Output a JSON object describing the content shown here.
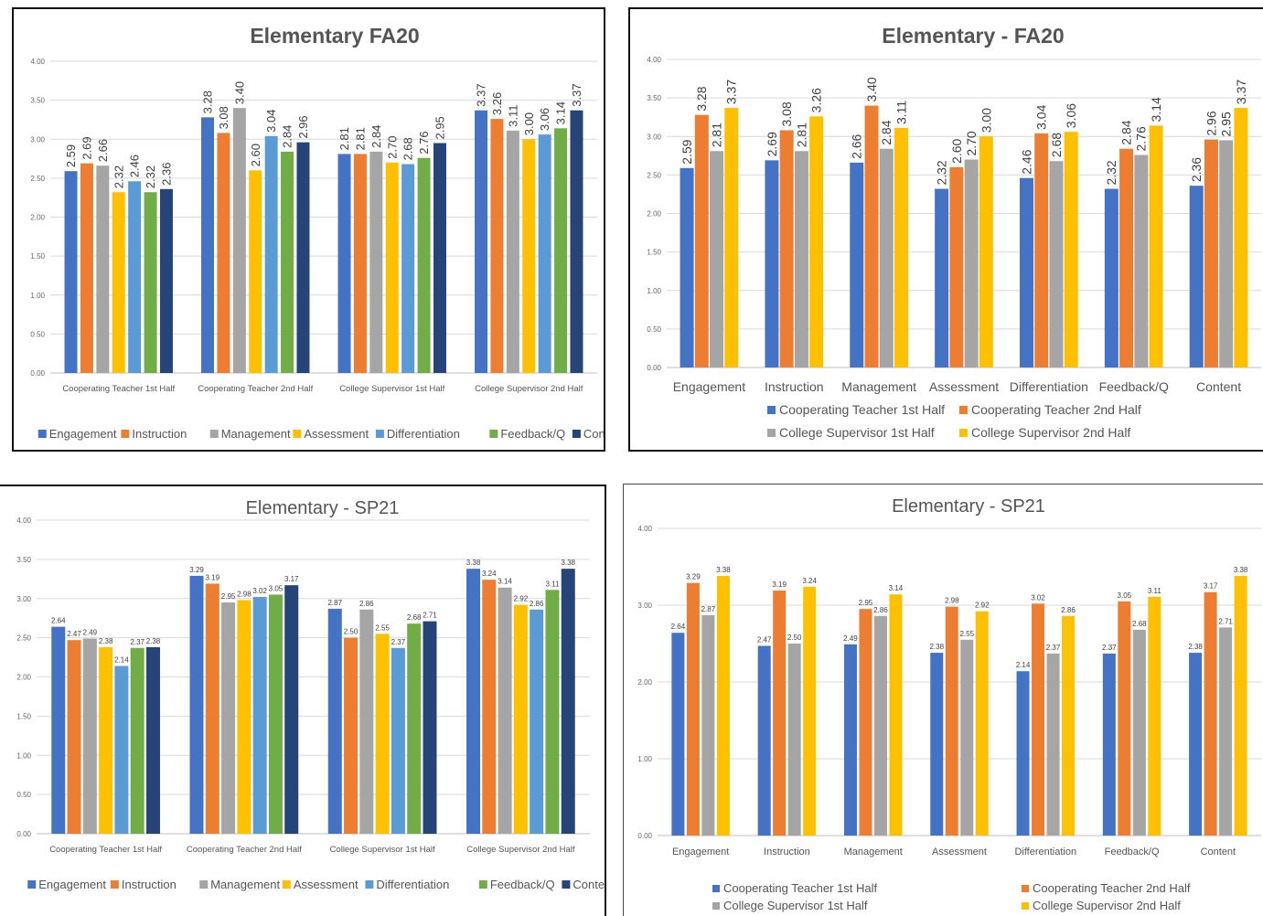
{
  "colors": {
    "engagement": "#4472C4",
    "instruction": "#ED7D31",
    "management": "#A5A5A5",
    "assessment": "#FFC000",
    "differentiation": "#5B9BD5",
    "feedback": "#70AD47",
    "content": "#264478"
  },
  "chart_data": [
    {
      "type": "bar",
      "title": "Elementary FA20",
      "categories": [
        "Cooperating Teacher 1st Half",
        "Cooperating Teacher 2nd Half",
        "College Supervisor 1st Half",
        "College Supervisor 2nd Half"
      ],
      "yticks": [
        "0.00",
        "0.50",
        "1.00",
        "1.50",
        "2.00",
        "2.50",
        "3.00",
        "3.50",
        "4.00"
      ],
      "ylim": [
        0,
        4
      ],
      "legend_position": "bottom",
      "data_label_orientation": "vertical",
      "series": [
        {
          "name": "Engagement",
          "color": "#4472C4",
          "values": [
            2.59,
            3.28,
            2.81,
            3.37
          ]
        },
        {
          "name": "Instruction",
          "color": "#ED7D31",
          "values": [
            2.69,
            3.08,
            2.81,
            3.26
          ]
        },
        {
          "name": "Management",
          "color": "#A5A5A5",
          "values": [
            2.66,
            3.4,
            2.84,
            3.11
          ]
        },
        {
          "name": "Assessment",
          "color": "#FFC000",
          "values": [
            2.32,
            2.6,
            2.7,
            3.0
          ]
        },
        {
          "name": "Differentiation",
          "color": "#5B9BD5",
          "values": [
            2.46,
            3.04,
            2.68,
            3.06
          ]
        },
        {
          "name": "Feedback/Q",
          "color": "#70AD47",
          "values": [
            2.32,
            2.84,
            2.76,
            3.14
          ]
        },
        {
          "name": "Content",
          "color": "#264478",
          "values": [
            2.36,
            2.96,
            2.95,
            3.37
          ]
        }
      ],
      "value_labels": [
        [
          "2.59",
          "3.28",
          "2.81",
          "3.37"
        ],
        [
          "2.69",
          "3.08",
          "2.81",
          "3.26"
        ],
        [
          "2.66",
          "3.40",
          "2.84",
          "3.11"
        ],
        [
          "2.32",
          "2.60",
          "2.70",
          "3.00"
        ],
        [
          "2.46",
          "3.04",
          "2.68",
          "3.06"
        ],
        [
          "2.32",
          "2.84",
          "2.76",
          "3.14"
        ],
        [
          "2.36",
          "2.96",
          "2.95",
          "3.37"
        ]
      ]
    },
    {
      "type": "bar",
      "title": "Elementary - FA20",
      "categories": [
        "Engagement",
        "Instruction",
        "Management",
        "Assessment",
        "Differentiation",
        "Feedback/Q",
        "Content"
      ],
      "yticks": [
        "0.00",
        "0.50",
        "1.00",
        "1.50",
        "2.00",
        "2.50",
        "3.00",
        "3.50",
        "4.00"
      ],
      "ylim": [
        0,
        4
      ],
      "legend_position": "bottom",
      "data_label_orientation": "vertical",
      "series": [
        {
          "name": "Cooperating Teacher 1st Half",
          "color": "#4472C4",
          "values": [
            2.59,
            2.69,
            2.66,
            2.32,
            2.46,
            2.32,
            2.36
          ]
        },
        {
          "name": "Cooperating Teacher 2nd Half",
          "color": "#ED7D31",
          "values": [
            3.28,
            3.08,
            3.4,
            2.6,
            3.04,
            2.84,
            2.96
          ]
        },
        {
          "name": "College Supervisor 1st Half",
          "color": "#A5A5A5",
          "values": [
            2.81,
            2.81,
            2.84,
            2.7,
            2.68,
            2.76,
            2.95
          ]
        },
        {
          "name": "College Supervisor 2nd Half",
          "color": "#FFC000",
          "values": [
            3.37,
            3.26,
            3.11,
            3.0,
            3.06,
            3.14,
            3.37
          ]
        }
      ],
      "value_labels": [
        [
          "2.59",
          "2.69",
          "2.66",
          "2.32",
          "2.46",
          "2.32",
          "2.36"
        ],
        [
          "3.28",
          "3.08",
          "3.40",
          "2.60",
          "3.04",
          "2.84",
          "2.96"
        ],
        [
          "2.81",
          "2.81",
          "2.84",
          "2.70",
          "2.68",
          "2.76",
          "2.95"
        ],
        [
          "3.37",
          "3.26",
          "3.11",
          "3.00",
          "3.06",
          "3.14",
          "3.37"
        ]
      ]
    },
    {
      "type": "bar",
      "title": "Elementary - SP21",
      "categories": [
        "Cooperating Teacher 1st Half",
        "Cooperating Teacher 2nd Half",
        "College Supervisor 1st Half",
        "College Supervisor 2nd Half"
      ],
      "yticks": [
        "0.00",
        "0.50",
        "1.00",
        "1.50",
        "2.00",
        "2.50",
        "3.00",
        "3.50",
        "4.00"
      ],
      "ylim": [
        0,
        4
      ],
      "legend_position": "bottom",
      "data_label_orientation": "horizontal",
      "series": [
        {
          "name": "Engagement",
          "color": "#4472C4",
          "values": [
            2.64,
            3.29,
            2.87,
            3.38
          ]
        },
        {
          "name": "Instruction",
          "color": "#ED7D31",
          "values": [
            2.47,
            3.19,
            2.5,
            3.24
          ]
        },
        {
          "name": "Management",
          "color": "#A5A5A5",
          "values": [
            2.49,
            2.95,
            2.86,
            3.14
          ]
        },
        {
          "name": "Assessment",
          "color": "#FFC000",
          "values": [
            2.38,
            2.98,
            2.55,
            2.92
          ]
        },
        {
          "name": "Differentiation",
          "color": "#5B9BD5",
          "values": [
            2.14,
            3.02,
            2.37,
            2.86
          ]
        },
        {
          "name": "Feedback/Q",
          "color": "#70AD47",
          "values": [
            2.37,
            3.05,
            2.68,
            3.11
          ]
        },
        {
          "name": "Content",
          "color": "#264478",
          "values": [
            2.38,
            3.17,
            2.71,
            3.38
          ]
        }
      ],
      "value_labels": [
        [
          "2.64",
          "3.29",
          "2.87",
          "3.38"
        ],
        [
          "2.47",
          "3.19",
          "2.50",
          "3.24"
        ],
        [
          "2.49",
          "2.95",
          "2.86",
          "3.14"
        ],
        [
          "2.38",
          "2.98",
          "2.55",
          "2.92"
        ],
        [
          "2.14",
          "3.02",
          "2.37",
          "2.86"
        ],
        [
          "2.37",
          "3.05",
          "2.68",
          "3.11"
        ],
        [
          "2.38",
          "3.17",
          "2.71",
          "3.38"
        ]
      ]
    },
    {
      "type": "bar",
      "title": "Elementary - SP21",
      "categories": [
        "Engagement",
        "Instruction",
        "Management",
        "Assessment",
        "Differentiation",
        "Feedback/Q",
        "Content"
      ],
      "yticks": [
        "0.00",
        "1.00",
        "2.00",
        "3.00",
        "4.00"
      ],
      "ylim": [
        0,
        4
      ],
      "legend_position": "bottom",
      "data_label_orientation": "horizontal",
      "series": [
        {
          "name": "Cooperating Teacher 1st Half",
          "color": "#4472C4",
          "values": [
            2.64,
            2.47,
            2.49,
            2.38,
            2.14,
            2.37,
            2.38
          ]
        },
        {
          "name": "Cooperating Teacher 2nd Half",
          "color": "#ED7D31",
          "values": [
            3.29,
            3.19,
            2.95,
            2.98,
            3.02,
            3.05,
            3.17
          ]
        },
        {
          "name": "College Supervisor 1st Half",
          "color": "#A5A5A5",
          "values": [
            2.87,
            2.5,
            2.86,
            2.55,
            2.37,
            2.68,
            2.71
          ]
        },
        {
          "name": "College Supervisor 2nd Half",
          "color": "#FFC000",
          "values": [
            3.38,
            3.24,
            3.14,
            2.92,
            2.86,
            3.11,
            3.38
          ]
        }
      ],
      "value_labels": [
        [
          "2.64",
          "2.47",
          "2.49",
          "2.38",
          "2.14",
          "2.37",
          "2.38"
        ],
        [
          "3.29",
          "3.19",
          "2.95",
          "2.98",
          "3.02",
          "3.05",
          "3.17"
        ],
        [
          "2.87",
          "2.50",
          "2.86",
          "2.55",
          "2.37",
          "2.68",
          "2.71"
        ],
        [
          "3.38",
          "3.24",
          "3.14",
          "2.92",
          "2.86",
          "3.11",
          "3.38"
        ]
      ]
    }
  ]
}
